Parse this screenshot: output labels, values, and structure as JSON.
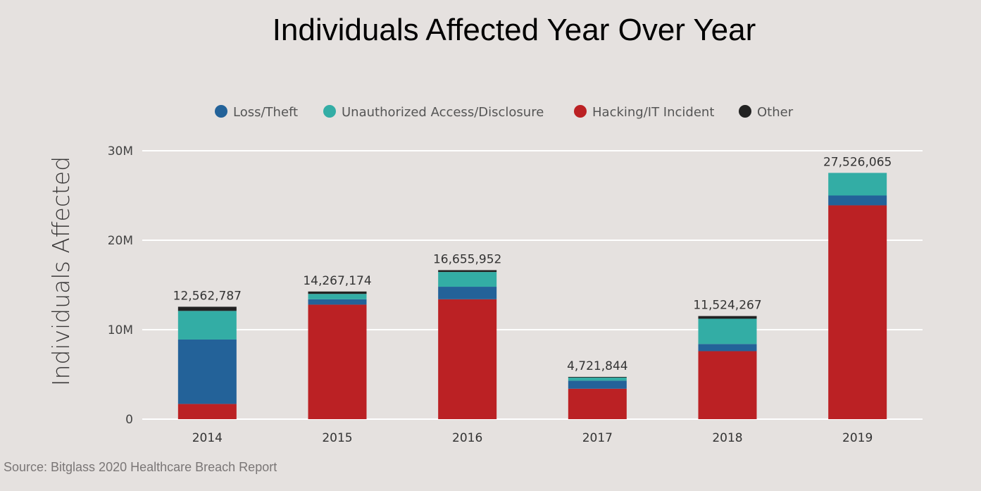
{
  "chart_data": {
    "type": "bar",
    "stacked": true,
    "title": "Individuals Affected Year Over Year",
    "ylabel": "Individuals Affected",
    "xlabel": "",
    "categories": [
      "2014",
      "2015",
      "2016",
      "2017",
      "2018",
      "2019"
    ],
    "ylim": [
      0,
      30000000
    ],
    "yticks": [
      {
        "value": 0,
        "label": "0"
      },
      {
        "value": 10000000,
        "label": "10M"
      },
      {
        "value": 20000000,
        "label": "20M"
      },
      {
        "value": 30000000,
        "label": "30M"
      }
    ],
    "grid": true,
    "legend_position": "top",
    "series": [
      {
        "name": "Hacking/IT Incident",
        "color": "#bb2124",
        "values": [
          1700000,
          12800000,
          13400000,
          3400000,
          7600000,
          23900000
        ]
      },
      {
        "name": "Loss/Theft",
        "color": "#236299",
        "values": [
          7200000,
          600000,
          1400000,
          900000,
          800000,
          1100000
        ]
      },
      {
        "name": "Unauthorized Access/Disclosure",
        "color": "#33ada5",
        "values": [
          3200000,
          600000,
          1650000,
          350000,
          2824267,
          2526065
        ]
      },
      {
        "name": "Other",
        "color": "#222222",
        "values": [
          462787,
          267174,
          205952,
          71844,
          300000,
          0
        ]
      }
    ],
    "totals": [
      12562787,
      14267174,
      16655952,
      4721844,
      11524267,
      27526065
    ],
    "total_labels": [
      "12,562,787",
      "14,267,174",
      "16,655,952",
      "4,721,844",
      "11,524,267",
      "27,526,065"
    ],
    "legend_order": [
      "Loss/Theft",
      "Unauthorized Access/Disclosure",
      "Hacking/IT Incident",
      "Other"
    ]
  },
  "source": "Source: Bitglass 2020 Healthcare Breach Report"
}
